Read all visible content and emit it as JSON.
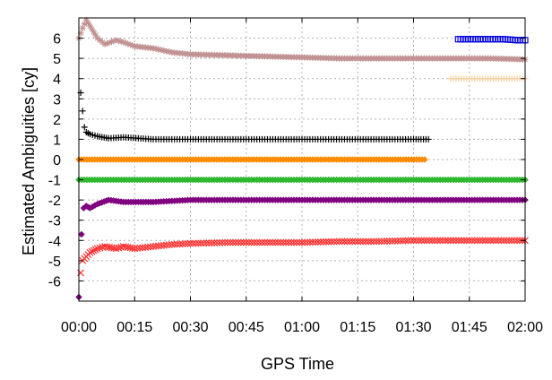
{
  "chart_data": {
    "type": "scatter",
    "title": "",
    "xlabel": "GPS Time",
    "ylabel": "Estimated Ambiguities [cy]",
    "xlim": [
      0,
      120
    ],
    "ylim": [
      -7,
      7
    ],
    "grid": true,
    "x_ticks": [
      {
        "value": 0,
        "label": "00:00"
      },
      {
        "value": 15,
        "label": "00:15"
      },
      {
        "value": 30,
        "label": "00:30"
      },
      {
        "value": 45,
        "label": "00:45"
      },
      {
        "value": 60,
        "label": "01:00"
      },
      {
        "value": 75,
        "label": "01:15"
      },
      {
        "value": 90,
        "label": "01:30"
      },
      {
        "value": 105,
        "label": "01:45"
      },
      {
        "value": 120,
        "label": "02:00"
      }
    ],
    "y_ticks": [
      {
        "value": 6,
        "label": "6"
      },
      {
        "value": 5,
        "label": "5"
      },
      {
        "value": 4,
        "label": "4"
      },
      {
        "value": 3,
        "label": "3"
      },
      {
        "value": 2,
        "label": "2"
      },
      {
        "value": 1,
        "label": "1"
      },
      {
        "value": 0,
        "label": "0"
      },
      {
        "value": -1,
        "label": "-1"
      },
      {
        "value": -2,
        "label": "-2"
      },
      {
        "value": -3,
        "label": "-3"
      },
      {
        "value": -4,
        "label": "-4"
      },
      {
        "value": -5,
        "label": "-5"
      },
      {
        "value": -6,
        "label": "-6"
      }
    ],
    "series": [
      {
        "color": "#c09090",
        "marker": "star",
        "x": [
          0,
          1,
          2,
          3,
          4,
          5,
          7,
          10,
          12,
          15,
          20,
          25,
          30,
          40,
          50,
          60,
          70,
          80,
          90,
          100,
          110,
          120
        ],
        "y": [
          6.0,
          6.5,
          6.9,
          6.6,
          6.3,
          6.0,
          5.7,
          5.9,
          5.8,
          5.6,
          5.5,
          5.3,
          5.2,
          5.15,
          5.1,
          5.05,
          5.0,
          5.0,
          5.0,
          5.0,
          5.0,
          4.95
        ]
      },
      {
        "color": "#0000e0",
        "marker": "square",
        "x": [
          102,
          106,
          110,
          114,
          118,
          120
        ],
        "y": [
          5.95,
          5.95,
          5.95,
          5.95,
          5.9,
          5.9
        ]
      },
      {
        "color": "#f5cfa0",
        "marker": "plus",
        "x": [
          100,
          105,
          110,
          115,
          120
        ],
        "y": [
          4.0,
          4.0,
          4.0,
          4.0,
          4.0
        ]
      },
      {
        "color": "#000000",
        "marker": "plus",
        "x": [
          0.5,
          1,
          1.5,
          2,
          3,
          5,
          8,
          12,
          20,
          30,
          45,
          60,
          75,
          90,
          94
        ],
        "y": [
          3.3,
          2.4,
          1.6,
          1.35,
          1.25,
          1.15,
          1.05,
          1.1,
          1.0,
          1.0,
          1.0,
          1.0,
          1.0,
          1.0,
          1.0
        ]
      },
      {
        "color": "#ff8c00",
        "marker": "diamond",
        "x": [
          0,
          10,
          20,
          30,
          40,
          50,
          60,
          70,
          80,
          93
        ],
        "y": [
          0.0,
          0.0,
          0.0,
          0.0,
          0.0,
          0.0,
          0.0,
          0.0,
          0.0,
          0.0
        ]
      },
      {
        "color": "#2eb82e",
        "marker": "diamond",
        "x": [
          0,
          10,
          20,
          30,
          40,
          50,
          60,
          70,
          80,
          90,
          100,
          110,
          120
        ],
        "y": [
          -1.0,
          -1.0,
          -1.0,
          -1.0,
          -1.0,
          -1.0,
          -1.0,
          -1.0,
          -1.0,
          -1.0,
          -1.0,
          -1.0,
          -1.0
        ]
      },
      {
        "color": "#800080",
        "marker": "diamond",
        "x": [
          0,
          0.7,
          1.3,
          2,
          3,
          5,
          8,
          12,
          20,
          30,
          45,
          60,
          75,
          90,
          105,
          120
        ],
        "y": [
          -6.8,
          -3.7,
          -2.4,
          -2.3,
          -2.4,
          -2.2,
          -2.0,
          -2.1,
          -2.1,
          -2.0,
          -2.0,
          -2.0,
          -2.0,
          -2.0,
          -2.0,
          -2.0
        ]
      },
      {
        "color": "#ff3030",
        "marker": "cross",
        "x": [
          0.5,
          1,
          2,
          3,
          4,
          5,
          7,
          10,
          12,
          15,
          20,
          25,
          30,
          40,
          50,
          60,
          70,
          80,
          90,
          100,
          110,
          120
        ],
        "y": [
          -5.6,
          -5.0,
          -4.8,
          -4.6,
          -4.5,
          -4.4,
          -4.3,
          -4.4,
          -4.3,
          -4.4,
          -4.3,
          -4.2,
          -4.15,
          -4.1,
          -4.1,
          -4.1,
          -4.05,
          -4.05,
          -4.0,
          -4.0,
          -4.0,
          -4.0
        ]
      }
    ]
  }
}
